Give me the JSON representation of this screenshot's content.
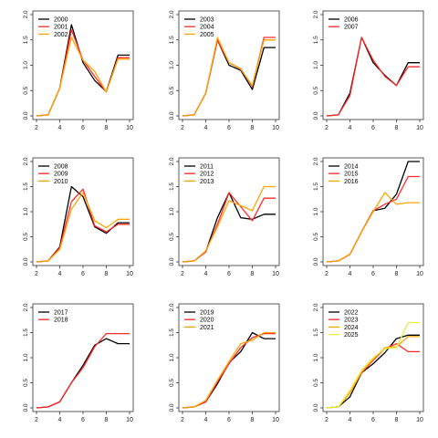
{
  "colors": {
    "black": "#000000",
    "red": "#ff2a2a",
    "orange": "#ffa500",
    "yellow": "#e6f03c"
  },
  "chart_data": [
    {
      "type": "line",
      "x": [
        2,
        3,
        4,
        5,
        6,
        7,
        8,
        9,
        10
      ],
      "xlim": [
        2,
        10
      ],
      "ylim": [
        0,
        2
      ],
      "xticks": [
        2,
        4,
        6,
        8,
        10
      ],
      "yticks": [
        0,
        0.5,
        1,
        1.5,
        2
      ],
      "yticklabels": [
        "0.0",
        "0.5",
        "1.0",
        "1.5",
        "2.0"
      ],
      "legend": "top-left",
      "series": [
        {
          "name": "2000",
          "color": "black",
          "values": [
            0,
            0.02,
            0.55,
            1.8,
            1.05,
            0.7,
            0.48,
            1.2,
            1.2
          ]
        },
        {
          "name": "2001",
          "color": "red",
          "values": [
            0,
            0.02,
            0.55,
            1.7,
            1.1,
            0.78,
            0.47,
            1.15,
            1.15
          ]
        },
        {
          "name": "2002",
          "color": "orange",
          "values": [
            0,
            0.02,
            0.55,
            1.55,
            1.1,
            0.88,
            0.47,
            1.12,
            1.12
          ]
        }
      ]
    },
    {
      "type": "line",
      "x": [
        2,
        3,
        4,
        5,
        6,
        7,
        8,
        9,
        10
      ],
      "xlim": [
        2,
        10
      ],
      "ylim": [
        0,
        2
      ],
      "xticks": [
        2,
        4,
        6,
        8,
        10
      ],
      "yticks": [
        0,
        0.5,
        1,
        1.5,
        2
      ],
      "yticklabels": [
        "0.0",
        "0.5",
        "1.0",
        "1.5",
        "2.0"
      ],
      "legend": "top-left",
      "series": [
        {
          "name": "2003",
          "color": "black",
          "values": [
            0,
            0.02,
            0.45,
            1.5,
            1.0,
            0.9,
            0.52,
            1.35,
            1.35
          ]
        },
        {
          "name": "2004",
          "color": "red",
          "values": [
            0,
            0.02,
            0.45,
            1.5,
            1.05,
            0.93,
            0.58,
            1.55,
            1.55
          ]
        },
        {
          "name": "2005",
          "color": "orange",
          "values": [
            0,
            0.02,
            0.45,
            1.55,
            1.05,
            0.92,
            0.6,
            1.5,
            1.5
          ]
        }
      ]
    },
    {
      "type": "line",
      "x": [
        2,
        3,
        4,
        5,
        6,
        7,
        8,
        9,
        10
      ],
      "xlim": [
        2,
        10
      ],
      "ylim": [
        0,
        2
      ],
      "xticks": [
        2,
        4,
        6,
        8,
        10
      ],
      "yticks": [
        0,
        0.5,
        1,
        1.5,
        2
      ],
      "yticklabels": [
        "0.0",
        "0.5",
        "1.0",
        "1.5",
        "2.0"
      ],
      "legend": "top-left",
      "series": [
        {
          "name": "2006",
          "color": "black",
          "values": [
            0,
            0.02,
            0.45,
            1.55,
            1.05,
            0.8,
            0.6,
            1.05,
            1.05
          ]
        },
        {
          "name": "2007",
          "color": "red",
          "values": [
            0,
            0.02,
            0.4,
            1.55,
            1.1,
            0.78,
            0.6,
            0.97,
            0.97
          ]
        }
      ]
    },
    {
      "type": "line",
      "x": [
        2,
        3,
        4,
        5,
        6,
        7,
        8,
        9,
        10
      ],
      "xlim": [
        2,
        10
      ],
      "ylim": [
        0,
        2
      ],
      "xticks": [
        2,
        4,
        6,
        8,
        10
      ],
      "yticks": [
        0,
        0.5,
        1,
        1.5,
        2
      ],
      "yticklabels": [
        "0.0",
        "0.5",
        "1.0",
        "1.5",
        "2.0"
      ],
      "legend": "top-left",
      "series": [
        {
          "name": "2008",
          "color": "black",
          "values": [
            0,
            0.02,
            0.3,
            1.5,
            1.3,
            0.7,
            0.57,
            0.78,
            0.78
          ]
        },
        {
          "name": "2009",
          "color": "red",
          "values": [
            0,
            0.02,
            0.28,
            1.2,
            1.45,
            0.72,
            0.6,
            0.75,
            0.75
          ]
        },
        {
          "name": "2010",
          "color": "orange",
          "values": [
            0,
            0.02,
            0.25,
            1.05,
            1.38,
            0.82,
            0.68,
            0.85,
            0.85
          ]
        }
      ]
    },
    {
      "type": "line",
      "x": [
        2,
        3,
        4,
        5,
        6,
        7,
        8,
        9,
        10
      ],
      "xlim": [
        2,
        10
      ],
      "ylim": [
        0,
        2
      ],
      "xticks": [
        2,
        4,
        6,
        8,
        10
      ],
      "yticks": [
        0,
        0.5,
        1,
        1.5,
        2
      ],
      "yticklabels": [
        "0.0",
        "0.5",
        "1.0",
        "1.5",
        "2.0"
      ],
      "legend": "top-left",
      "series": [
        {
          "name": "2011",
          "color": "black",
          "values": [
            0,
            0.02,
            0.2,
            0.88,
            1.38,
            0.88,
            0.85,
            0.95,
            0.95
          ]
        },
        {
          "name": "2012",
          "color": "red",
          "values": [
            0,
            0.02,
            0.2,
            0.75,
            1.38,
            1.1,
            0.82,
            1.27,
            1.27
          ]
        },
        {
          "name": "2013",
          "color": "orange",
          "values": [
            0,
            0.02,
            0.22,
            0.7,
            1.22,
            1.12,
            1.02,
            1.5,
            1.5
          ]
        }
      ]
    },
    {
      "type": "line",
      "x": [
        2,
        3,
        4,
        5,
        6,
        7,
        8,
        9,
        10
      ],
      "xlim": [
        2,
        10
      ],
      "ylim": [
        0,
        2
      ],
      "xticks": [
        2,
        4,
        6,
        8,
        10
      ],
      "yticks": [
        0,
        0.5,
        1,
        1.5,
        2
      ],
      "yticklabels": [
        "0.0",
        "0.5",
        "1.0",
        "1.5",
        "2.0"
      ],
      "legend": "top-left",
      "series": [
        {
          "name": "2014",
          "color": "black",
          "values": [
            0,
            0.02,
            0.15,
            0.6,
            1.02,
            1.07,
            1.35,
            2.0,
            2.0
          ]
        },
        {
          "name": "2015",
          "color": "red",
          "values": [
            0,
            0.02,
            0.15,
            0.6,
            1.02,
            1.15,
            1.25,
            1.7,
            1.7
          ]
        },
        {
          "name": "2016",
          "color": "orange",
          "values": [
            0,
            0.02,
            0.15,
            0.6,
            1.0,
            1.38,
            1.15,
            1.18,
            1.18
          ]
        }
      ]
    },
    {
      "type": "line",
      "x": [
        2,
        3,
        4,
        5,
        6,
        7,
        8,
        9,
        10
      ],
      "xlim": [
        2,
        10
      ],
      "ylim": [
        0,
        2
      ],
      "xticks": [
        2,
        4,
        6,
        8,
        10
      ],
      "yticks": [
        0,
        0.5,
        1,
        1.5,
        2
      ],
      "yticklabels": [
        "0.0",
        "0.5",
        "1.0",
        "1.5",
        "2.0"
      ],
      "legend": "top-left",
      "series": [
        {
          "name": "2017",
          "color": "black",
          "values": [
            0,
            0.02,
            0.12,
            0.5,
            0.85,
            1.25,
            1.38,
            1.28,
            1.28
          ]
        },
        {
          "name": "2018",
          "color": "red",
          "values": [
            0,
            0.02,
            0.12,
            0.5,
            0.8,
            1.22,
            1.48,
            1.48,
            1.48
          ]
        }
      ]
    },
    {
      "type": "line",
      "x": [
        2,
        3,
        4,
        5,
        6,
        7,
        8,
        9,
        10
      ],
      "xlim": [
        2,
        10
      ],
      "ylim": [
        0,
        2
      ],
      "xticks": [
        2,
        4,
        6,
        8,
        10
      ],
      "yticks": [
        0,
        0.5,
        1,
        1.5,
        2
      ],
      "yticklabels": [
        "0.0",
        "0.5",
        "1.0",
        "1.5",
        "2.0"
      ],
      "legend": "top-left",
      "series": [
        {
          "name": "2019",
          "color": "black",
          "values": [
            0,
            0.02,
            0.12,
            0.48,
            0.9,
            1.12,
            1.5,
            1.38,
            1.38
          ]
        },
        {
          "name": "2020",
          "color": "red",
          "values": [
            0,
            0.02,
            0.12,
            0.52,
            0.88,
            1.2,
            1.4,
            1.48,
            1.48
          ]
        },
        {
          "name": "2021",
          "color": "orange",
          "values": [
            0,
            0.02,
            0.15,
            0.55,
            0.92,
            1.28,
            1.35,
            1.5,
            1.5
          ]
        }
      ]
    },
    {
      "type": "line",
      "x": [
        2,
        3,
        4,
        5,
        6,
        7,
        8,
        9,
        10
      ],
      "xlim": [
        2,
        10
      ],
      "ylim": [
        0,
        2
      ],
      "xticks": [
        2,
        4,
        6,
        8,
        10
      ],
      "yticks": [
        0,
        0.5,
        1,
        1.5,
        2
      ],
      "yticklabels": [
        "0.0",
        "0.5",
        "1.0",
        "1.5",
        "2.0"
      ],
      "legend": "top-left",
      "series": [
        {
          "name": "2022",
          "color": "black",
          "values": [
            0,
            0.02,
            0.22,
            0.7,
            0.88,
            1.1,
            1.38,
            1.45,
            1.45
          ]
        },
        {
          "name": "2023",
          "color": "red",
          "values": [
            0,
            0.02,
            0.3,
            0.7,
            0.95,
            1.18,
            1.28,
            1.12,
            1.12
          ]
        },
        {
          "name": "2024",
          "color": "orange",
          "values": [
            0,
            0.02,
            0.3,
            0.72,
            0.97,
            1.2,
            1.22,
            1.42,
            1.42
          ]
        },
        {
          "name": "2025",
          "color": "yellow",
          "values": [
            0,
            0.02,
            0.35,
            0.75,
            1.0,
            1.18,
            1.2,
            1.7,
            1.7
          ]
        }
      ]
    }
  ]
}
